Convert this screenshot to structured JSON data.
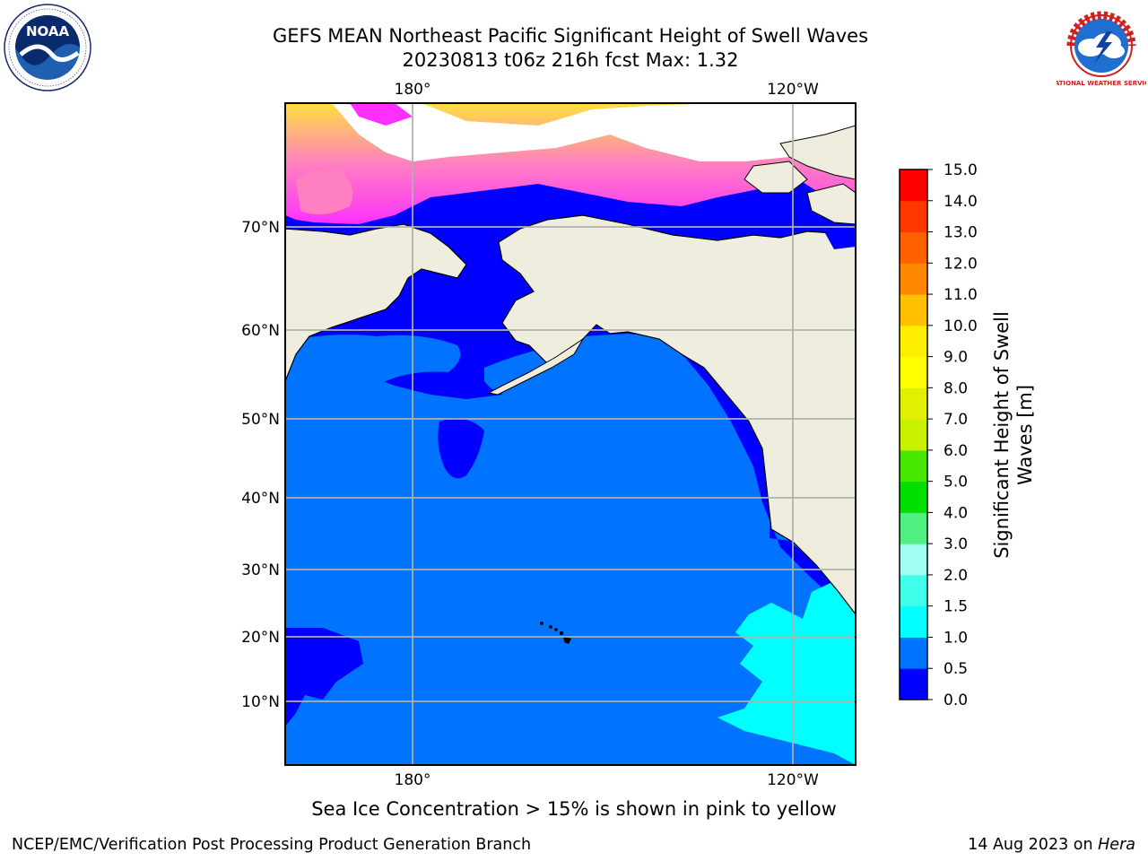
{
  "title": {
    "line1": "GEFS MEAN Northeast Pacific Significant Height of Swell Waves",
    "line2": "20230813 t06z 216h fcst   Max: 1.32"
  },
  "map": {
    "longitude_labels_top": [
      "180°",
      "120°W"
    ],
    "longitude_labels_bottom": [
      "180°",
      "120°W"
    ],
    "latitude_labels": [
      "70°N",
      "60°N",
      "50°N",
      "40°N",
      "30°N",
      "20°N",
      "10°N"
    ],
    "colors": {
      "land": "#efedde",
      "sea_ice": "#ffffff",
      "grid": "#b0b0b0"
    }
  },
  "colorbar": {
    "label_line1": "Significant Height of Swell",
    "label_line2": "Waves [m]",
    "ticks": [
      "0.0",
      "0.5",
      "1.0",
      "1.5",
      "2.0",
      "3.0",
      "4.0",
      "5.0",
      "6.0",
      "7.0",
      "8.0",
      "9.0",
      "10.0",
      "11.0",
      "12.0",
      "13.0",
      "14.0",
      "15.0"
    ],
    "colors": [
      "#0000ff",
      "#0073ff",
      "#00ffff",
      "#40ffea",
      "#a0fff0",
      "#50f080",
      "#00e000",
      "#48e800",
      "#c8f000",
      "#e0f000",
      "#ffff00",
      "#ffee00",
      "#ffc000",
      "#ff8800",
      "#ff6000",
      "#ff3800",
      "#ff0000"
    ]
  },
  "logos": {
    "left_logo_text": "NOAA",
    "right_logo_text": "NATIONAL WEATHER SERVICE"
  },
  "footer": {
    "caption": "Sea Ice Concentration > 15% is shown in pink to yellow",
    "left": "NCEP/EMC/Verification Post Processing Product Generation Branch",
    "right_date": "14 Aug 2023 on ",
    "right_host": "Hera"
  }
}
